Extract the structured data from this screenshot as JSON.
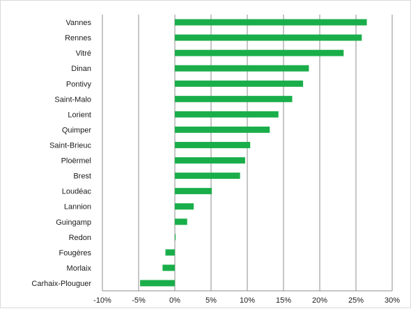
{
  "chart_data": {
    "type": "bar",
    "orientation": "horizontal",
    "categories": [
      "Vannes",
      "Rennes",
      "Vitré",
      "Dinan",
      "Pontivy",
      "Saint-Malo",
      "Lorient",
      "Quimper",
      "Saint-Brieuc",
      "Ploërmel",
      "Brest",
      "Loudéac",
      "Lannion",
      "Guingamp",
      "Redon",
      "Fougères",
      "Morlaix",
      "Carhaix-Plouguer"
    ],
    "values": [
      26.5,
      25.8,
      23.3,
      18.5,
      17.7,
      16.2,
      14.3,
      13.1,
      10.4,
      9.7,
      9.0,
      5.1,
      2.6,
      1.7,
      0.1,
      -1.3,
      -1.7,
      -4.8
    ],
    "xlim": [
      -10,
      30
    ],
    "xticks": [
      -10,
      -5,
      0,
      5,
      10,
      15,
      20,
      25,
      30
    ],
    "xtick_labels": [
      "-10%",
      "-5%",
      "0%",
      "5%",
      "10%",
      "15%",
      "20%",
      "25%",
      "30%"
    ],
    "title": "",
    "xlabel": "",
    "ylabel": "",
    "grid": "vertical",
    "legend": "none",
    "bar_color": "#1aae4a",
    "grid_color": "#8c8c8c"
  }
}
